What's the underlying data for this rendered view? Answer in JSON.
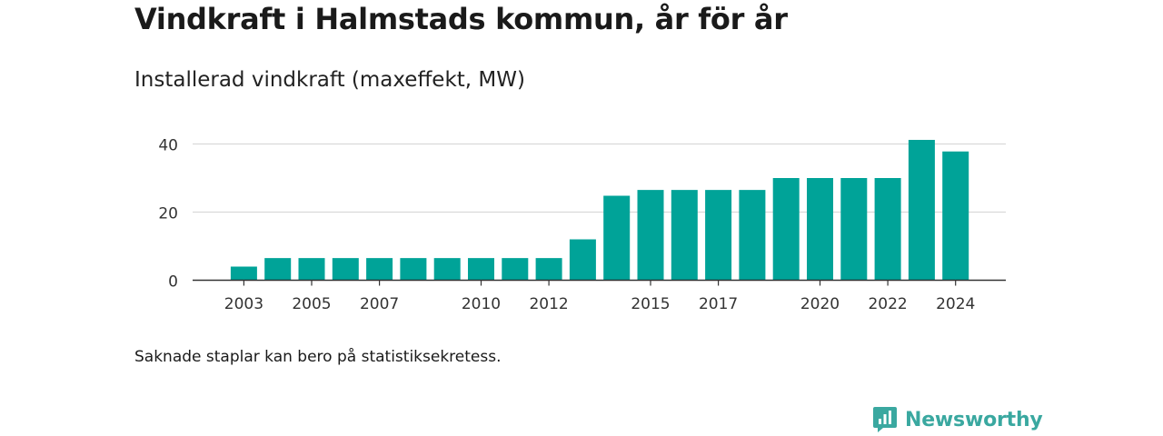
{
  "title": "Vindkraft i Halmstads kommun, år för år",
  "subtitle": "Installerad vindkraft (maxeffekt, MW)",
  "note": "Saknade staplar kan bero på statistiksekretess.",
  "brand": {
    "name": "Newsworthy",
    "color": "#3aa8a0"
  },
  "colors": {
    "bar": "#00a398",
    "grid": "#d9d9d9",
    "axis": "#333333",
    "tick_text": "#333333"
  },
  "chart_data": {
    "type": "bar",
    "years": [
      2003,
      2004,
      2005,
      2006,
      2007,
      2008,
      2009,
      2010,
      2011,
      2012,
      2013,
      2014,
      2015,
      2016,
      2017,
      2018,
      2019,
      2020,
      2021,
      2022,
      2023,
      2024
    ],
    "values": [
      4,
      6.5,
      6.5,
      6.5,
      6.5,
      6.5,
      6.5,
      6.5,
      6.5,
      6.5,
      12,
      24.8,
      26.5,
      26.5,
      26.5,
      26.5,
      30,
      30,
      30,
      30,
      41.2,
      37.8
    ],
    "x_tick_labels": [
      "2003",
      "2005",
      "2007",
      "2010",
      "2012",
      "2015",
      "2017",
      "2020",
      "2022",
      "2024"
    ],
    "y_ticks": [
      0,
      20,
      40
    ],
    "ylim": [
      0,
      45
    ],
    "grid": true,
    "xlabel": "",
    "ylabel": ""
  }
}
